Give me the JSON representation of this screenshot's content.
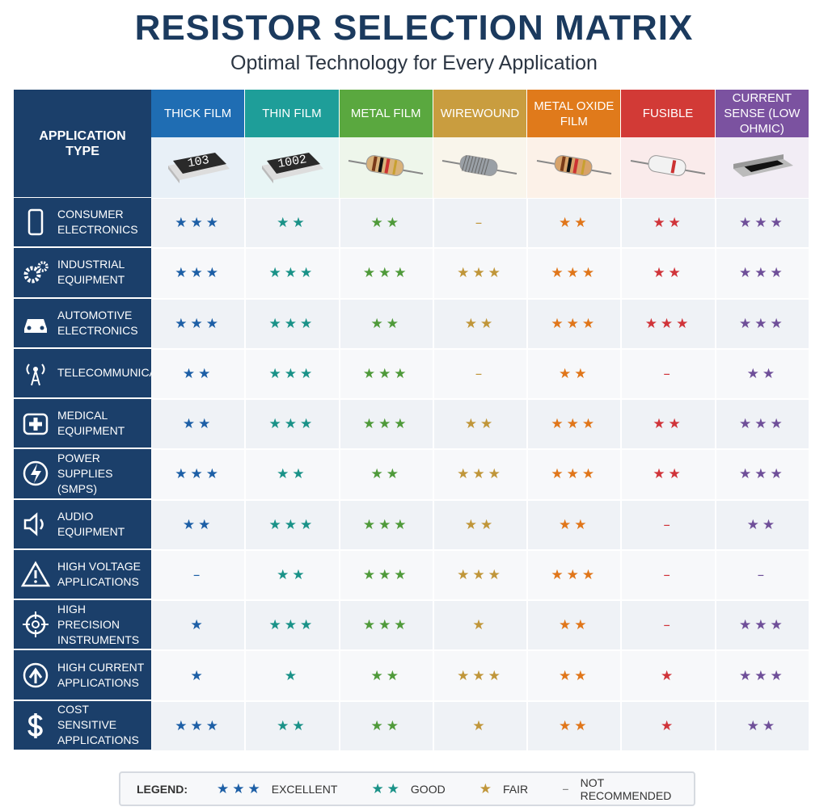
{
  "title": "RESISTOR SELECTION MATRIX",
  "subtitle": "Optimal Technology for Every Application",
  "table": {
    "corner": "APPLICATION TYPE",
    "columns": [
      {
        "name": "THICK FILM",
        "color": "#1f6db3",
        "star_color": "#1d5fa6",
        "chip_label": "103"
      },
      {
        "name": "THIN FILM",
        "color": "#1e9e99",
        "star_color": "#1a9288",
        "chip_label": "1002"
      },
      {
        "name": "METAL FILM",
        "color": "#5aa83f",
        "star_color": "#4f9a3a"
      },
      {
        "name": "WIREWOUND",
        "color": "#c99d3f",
        "star_color": "#c0963a"
      },
      {
        "name": "METAL OXIDE FILM",
        "color": "#e07a1b",
        "star_color": "#e0761a"
      },
      {
        "name": "FUSIBLE",
        "color": "#d23a36",
        "star_color": "#d0343a"
      },
      {
        "name": "CURRENT SENSE (LOW OHMIC)",
        "color": "#7b52a0",
        "star_color": "#6f4f99"
      }
    ],
    "rows": [
      {
        "label": "CONSUMER ELECTRONICS",
        "cells": [
          "★★★",
          "★★",
          "★★",
          "–",
          "★★",
          "★★",
          "★★★"
        ]
      },
      {
        "label": "INDUSTRIAL EQUIPMENT",
        "cells": [
          "★★★",
          "★★★",
          "★★★",
          "★★★",
          "★★★",
          "★★",
          "★★★"
        ]
      },
      {
        "label": "AUTOMOTIVE ELECTRONICS",
        "cells": [
          "★★★",
          "★★★",
          "★★",
          "★★",
          "★★★",
          "★★★",
          "★★★"
        ]
      },
      {
        "label": "TELECOMMUNICATIONS",
        "cells": [
          "★★",
          "★★★",
          "★★★",
          "–",
          "★★",
          "–",
          "★★"
        ]
      },
      {
        "label": "MEDICAL EQUIPMENT",
        "cells": [
          "★★",
          "★★★",
          "★★★",
          "★★",
          "★★★",
          "★★",
          "★★★"
        ]
      },
      {
        "label": "POWER SUPPLIES (SMPS)",
        "cells": [
          "★★★",
          "★★",
          "★★",
          "★★★",
          "★★★",
          "★★",
          "★★★"
        ]
      },
      {
        "label": "AUDIO EQUIPMENT",
        "cells": [
          "★★",
          "★★★",
          "★★★",
          "★★",
          "★★",
          "–",
          "★★"
        ]
      },
      {
        "label": "HIGH VOLTAGE APPLICATIONS",
        "cells": [
          "–",
          "★★",
          "★★★",
          "★★★",
          "★★★",
          "–",
          "–"
        ]
      },
      {
        "label": "HIGH PRECISION INSTRUMENTS",
        "cells": [
          "★",
          "★★★",
          "★★★",
          "★",
          "★★",
          "–",
          "★★★"
        ]
      },
      {
        "label": "HIGH CURRENT APPLICATIONS",
        "cells": [
          "★",
          "★",
          "★★",
          "★★★",
          "★★",
          "★",
          "★★★"
        ]
      },
      {
        "label": "COST SENSITIVE APPLICATIONS",
        "cells": [
          "★★★",
          "★★",
          "★★",
          "★",
          "★★",
          "★",
          "★★"
        ]
      }
    ]
  },
  "legend": {
    "title": "LEGEND:",
    "items": [
      {
        "symbol": "★★★",
        "label": "EXCELLENT",
        "color": "#1d5fa6"
      },
      {
        "symbol": "★★",
        "label": "GOOD",
        "color": "#1a9288"
      },
      {
        "symbol": "★",
        "label": "FAIR",
        "color": "#c0963a"
      },
      {
        "symbol": "–",
        "label": "NOT RECOMMENDED",
        "color": "#888"
      }
    ]
  }
}
